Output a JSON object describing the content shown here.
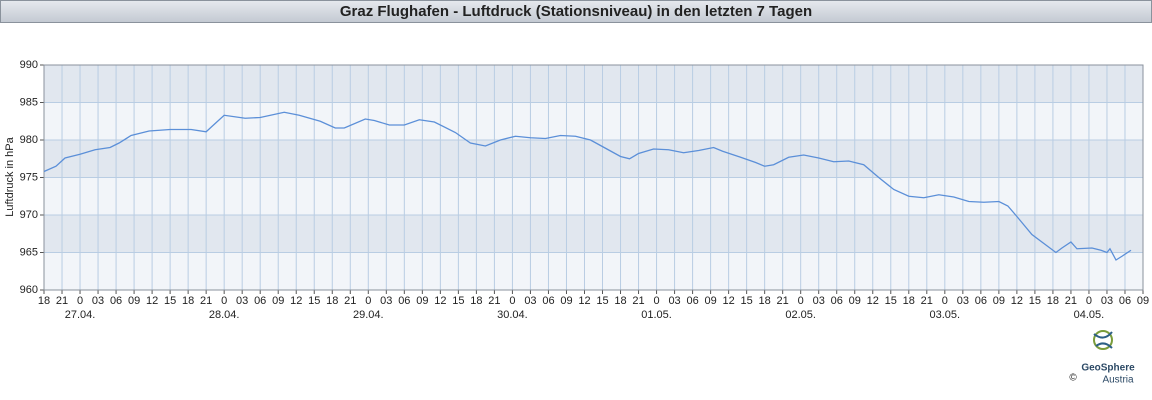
{
  "chart_data": {
    "type": "line",
    "title": "Graz Flughafen - Luftdruck (Stationsniveau) in den letzten 7 Tagen",
    "ylabel": "Luftdruck in hPa",
    "xlim": [
      0,
      183
    ],
    "ylim": [
      960,
      990
    ],
    "yticks": [
      960,
      965,
      970,
      975,
      980,
      985,
      990
    ],
    "xticks": [
      {
        "value": 0,
        "label": "18"
      },
      {
        "value": 3,
        "label": "21"
      },
      {
        "value": 6,
        "label": "0"
      },
      {
        "value": 9,
        "label": "03"
      },
      {
        "value": 12,
        "label": "06"
      },
      {
        "value": 15,
        "label": "09"
      },
      {
        "value": 18,
        "label": "12"
      },
      {
        "value": 21,
        "label": "15"
      },
      {
        "value": 24,
        "label": "18"
      },
      {
        "value": 27,
        "label": "21"
      },
      {
        "value": 30,
        "label": "0"
      },
      {
        "value": 33,
        "label": "03"
      },
      {
        "value": 36,
        "label": "06"
      },
      {
        "value": 39,
        "label": "09"
      },
      {
        "value": 42,
        "label": "12"
      },
      {
        "value": 45,
        "label": "15"
      },
      {
        "value": 48,
        "label": "18"
      },
      {
        "value": 51,
        "label": "21"
      },
      {
        "value": 54,
        "label": "0"
      },
      {
        "value": 57,
        "label": "03"
      },
      {
        "value": 60,
        "label": "06"
      },
      {
        "value": 63,
        "label": "09"
      },
      {
        "value": 66,
        "label": "12"
      },
      {
        "value": 69,
        "label": "15"
      },
      {
        "value": 72,
        "label": "18"
      },
      {
        "value": 75,
        "label": "21"
      },
      {
        "value": 78,
        "label": "0"
      },
      {
        "value": 81,
        "label": "03"
      },
      {
        "value": 84,
        "label": "06"
      },
      {
        "value": 87,
        "label": "09"
      },
      {
        "value": 90,
        "label": "12"
      },
      {
        "value": 93,
        "label": "15"
      },
      {
        "value": 96,
        "label": "18"
      },
      {
        "value": 99,
        "label": "21"
      },
      {
        "value": 102,
        "label": "0"
      },
      {
        "value": 105,
        "label": "03"
      },
      {
        "value": 108,
        "label": "06"
      },
      {
        "value": 111,
        "label": "09"
      },
      {
        "value": 114,
        "label": "12"
      },
      {
        "value": 117,
        "label": "15"
      },
      {
        "value": 120,
        "label": "18"
      },
      {
        "value": 123,
        "label": "21"
      },
      {
        "value": 126,
        "label": "0"
      },
      {
        "value": 129,
        "label": "03"
      },
      {
        "value": 132,
        "label": "06"
      },
      {
        "value": 135,
        "label": "09"
      },
      {
        "value": 138,
        "label": "12"
      },
      {
        "value": 141,
        "label": "15"
      },
      {
        "value": 144,
        "label": "18"
      },
      {
        "value": 147,
        "label": "21"
      },
      {
        "value": 150,
        "label": "0"
      },
      {
        "value": 153,
        "label": "03"
      },
      {
        "value": 156,
        "label": "06"
      },
      {
        "value": 159,
        "label": "09"
      },
      {
        "value": 162,
        "label": "12"
      },
      {
        "value": 165,
        "label": "15"
      },
      {
        "value": 168,
        "label": "18"
      },
      {
        "value": 171,
        "label": "21"
      },
      {
        "value": 174,
        "label": "0"
      },
      {
        "value": 177,
        "label": "03"
      },
      {
        "value": 180,
        "label": "06"
      },
      {
        "value": 183,
        "label": "09"
      }
    ],
    "date_labels": [
      {
        "value": 6,
        "label": "27.04."
      },
      {
        "value": 30,
        "label": "28.04."
      },
      {
        "value": 54,
        "label": "29.04."
      },
      {
        "value": 78,
        "label": "30.04."
      },
      {
        "value": 102,
        "label": "01.05."
      },
      {
        "value": 126,
        "label": "02.05."
      },
      {
        "value": 150,
        "label": "03.05."
      },
      {
        "value": 174,
        "label": "04.05."
      }
    ],
    "grid": true,
    "band_colors": [
      "#f2f5f9",
      "#e1e7ef"
    ],
    "series": [
      {
        "color": "#5b8fd8",
        "x": [
          0,
          2,
          3.5,
          6,
          8.5,
          11,
          12.5,
          14.5,
          17.5,
          21,
          24.5,
          27,
          28.5,
          30,
          33.5,
          36,
          40,
          42.5,
          46,
          48.5,
          50,
          53.5,
          55,
          57.5,
          60,
          62.5,
          65,
          68.5,
          71,
          73.5,
          76,
          78.5,
          81,
          83.5,
          86,
          88.5,
          91,
          93.5,
          96,
          97.5,
          99,
          101.5,
          104,
          106.5,
          109,
          111.5,
          113,
          116,
          118.5,
          120,
          121.5,
          124,
          126.5,
          129,
          131.5,
          134,
          136.5,
          139,
          141.5,
          144,
          146.5,
          149,
          151.5,
          154,
          156.5,
          159,
          160.5,
          162,
          164.5,
          167,
          168.5,
          169.5,
          171,
          172,
          174.5,
          176,
          177,
          177.5,
          178.5,
          179.5,
          181
        ],
        "values": [
          975.8,
          976.5,
          977.6,
          978.1,
          978.7,
          979.0,
          979.6,
          980.6,
          981.2,
          981.4,
          981.4,
          981.1,
          982.2,
          983.3,
          982.9,
          983.0,
          983.7,
          983.3,
          982.5,
          981.6,
          981.6,
          982.8,
          982.6,
          982.0,
          982.0,
          982.7,
          982.4,
          981.0,
          979.6,
          979.2,
          980.0,
          980.5,
          980.3,
          980.2,
          980.6,
          980.5,
          980.0,
          978.9,
          977.8,
          977.5,
          978.2,
          978.8,
          978.7,
          978.3,
          978.6,
          979.0,
          978.5,
          977.7,
          977.0,
          976.5,
          976.7,
          977.7,
          978.0,
          977.6,
          977.1,
          977.2,
          976.7,
          975.0,
          973.4,
          972.5,
          972.3,
          972.7,
          972.4,
          971.8,
          971.7,
          971.8,
          971.2,
          969.8,
          967.4,
          965.9,
          965.0,
          965.6,
          966.4,
          965.5,
          965.6,
          965.3,
          965.0,
          965.5,
          964.0,
          964.5,
          965.3
        ]
      }
    ]
  },
  "logo": {
    "name": "GeoSphere",
    "sub": "Austria",
    "copyright": "©"
  }
}
